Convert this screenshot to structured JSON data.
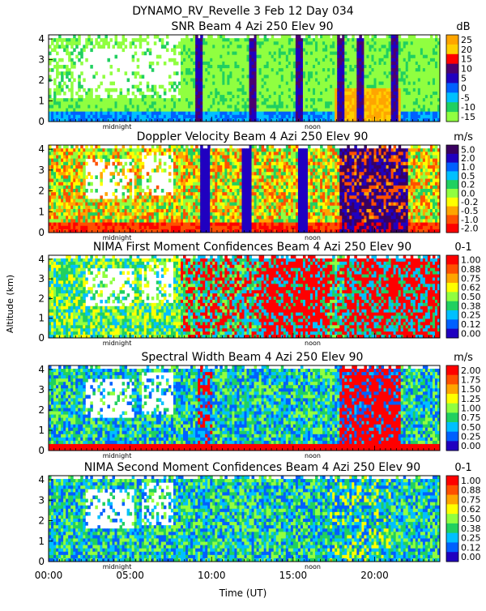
{
  "header": {
    "title": "DYNAMO_RV_Revelle    3 Feb 12 Day 034"
  },
  "axes": {
    "ylabel": "Altitude (km)",
    "xlabel": "Time (UT)",
    "xticks": [
      "00:00",
      "05:00",
      "10:00",
      "15:00",
      "20:00"
    ],
    "yticks": [
      "0",
      "1",
      "2",
      "3",
      "4"
    ],
    "marker_midnight": "midnight",
    "marker_noon": "noon"
  },
  "chart_data": [
    {
      "type": "heatmap",
      "title": "SNR Beam 4 Azi 250 Elev 90",
      "units": "dB",
      "xlim": [
        0,
        24
      ],
      "ylim": [
        0,
        4.2
      ],
      "colorbar_labels": [
        "25",
        "20",
        "15",
        "10",
        "5",
        "0",
        "-5",
        "-10",
        "-15"
      ],
      "colorbar_colors": [
        "#ffa500",
        "#ffd000",
        "#ff0000",
        "#4b0070",
        "#2000c0",
        "#0060ff",
        "#00c0ff",
        "#20d060",
        "#90ff40"
      ],
      "theme": "snr"
    },
    {
      "type": "heatmap",
      "title": "Doppler Velocity Beam 4 Azi 250 Elev 90",
      "units": "m/s",
      "xlim": [
        0,
        24
      ],
      "ylim": [
        0,
        4.2
      ],
      "colorbar_labels": [
        "5.0",
        "2.0",
        "1.0",
        "0.5",
        "0.2",
        "0.0",
        "-0.2",
        "-0.5",
        "-1.0",
        "-2.0"
      ],
      "colorbar_colors": [
        "#3a0060",
        "#2000c0",
        "#0060ff",
        "#00c0ff",
        "#20d060",
        "#90ff40",
        "#ffff00",
        "#ffa500",
        "#ff5000",
        "#ff0000"
      ],
      "theme": "doppler"
    },
    {
      "type": "heatmap",
      "title": "NIMA First Moment Confidences Beam 4 Azi 250 Elev 90",
      "units": "0-1",
      "xlim": [
        0,
        24
      ],
      "ylim": [
        0,
        4.2
      ],
      "colorbar_labels": [
        "1.00",
        "0.88",
        "0.75",
        "0.62",
        "0.50",
        "0.38",
        "0.25",
        "0.12",
        "0.00"
      ],
      "colorbar_colors": [
        "#ff0000",
        "#ff5000",
        "#ffa500",
        "#ffff00",
        "#90ff40",
        "#20d060",
        "#00c0ff",
        "#0060ff",
        "#2000c0"
      ],
      "theme": "conf1"
    },
    {
      "type": "heatmap",
      "title": "Spectral Width Beam 4 Azi 250 Elev 90",
      "units": "m/s",
      "xlim": [
        0,
        24
      ],
      "ylim": [
        0,
        4.2
      ],
      "colorbar_labels": [
        "2.00",
        "1.75",
        "1.50",
        "1.25",
        "1.00",
        "0.75",
        "0.50",
        "0.25",
        "0.00"
      ],
      "colorbar_colors": [
        "#ff0000",
        "#ff5000",
        "#ffa500",
        "#ffff00",
        "#90ff40",
        "#20d060",
        "#00c0ff",
        "#0060ff",
        "#2000c0"
      ],
      "theme": "width"
    },
    {
      "type": "heatmap",
      "title": "NIMA Second Moment Confidences Beam 4 Azi 250 Elev 90",
      "units": "0-1",
      "xlim": [
        0,
        24
      ],
      "ylim": [
        0,
        4.2
      ],
      "colorbar_labels": [
        "1.00",
        "0.88",
        "0.75",
        "0.62",
        "0.50",
        "0.38",
        "0.25",
        "0.12",
        "0.00"
      ],
      "colorbar_colors": [
        "#ff0000",
        "#ff5000",
        "#ffa500",
        "#ffff00",
        "#90ff40",
        "#20d060",
        "#00c0ff",
        "#0060ff",
        "#2000c0"
      ],
      "theme": "conf2"
    }
  ]
}
